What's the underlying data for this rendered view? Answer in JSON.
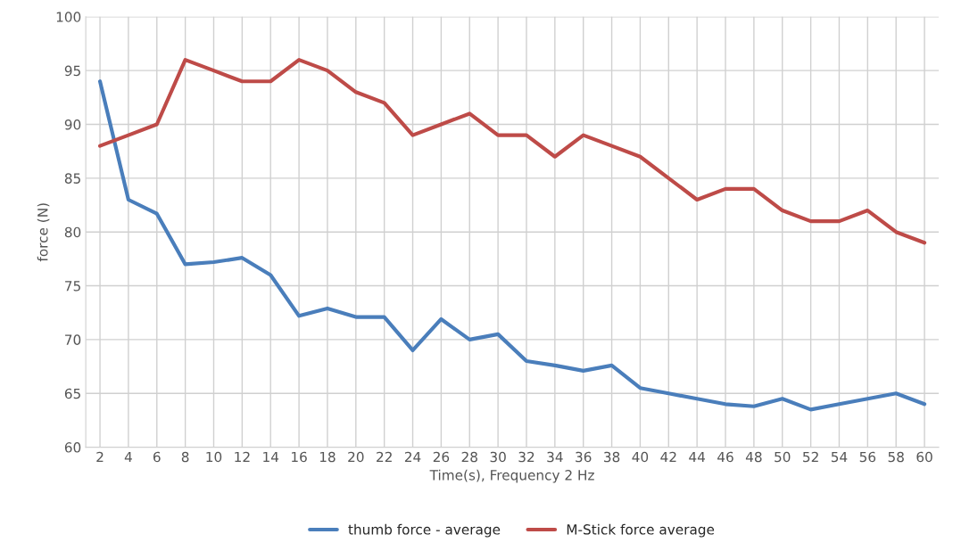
{
  "chart_data": {
    "type": "line",
    "xlabel": "Time(s), Frequency 2 Hz",
    "ylabel": "force (N)",
    "categories": [
      "2",
      "4",
      "6",
      "8",
      "10",
      "12",
      "14",
      "16",
      "18",
      "20",
      "22",
      "24",
      "26",
      "28",
      "30",
      "32",
      "34",
      "36",
      "38",
      "40",
      "42",
      "44",
      "46",
      "48",
      "50",
      "52",
      "54",
      "56",
      "58",
      "60"
    ],
    "series": [
      {
        "name": "thumb force - average",
        "color": "#4a7ebb",
        "values": [
          94,
          83,
          81.7,
          77,
          77.2,
          77.6,
          76,
          72.2,
          72.9,
          72.1,
          72.1,
          69,
          71.9,
          70,
          70.5,
          68,
          67.6,
          67.1,
          67.6,
          65.5,
          65,
          64.5,
          64,
          63.8,
          64.5,
          63.5,
          64,
          64.5,
          65,
          64
        ]
      },
      {
        "name": "M-Stick force average",
        "color": "#be4b48",
        "values": [
          88,
          89,
          90,
          96,
          95,
          94,
          94,
          96,
          95,
          93,
          92,
          89,
          90,
          91,
          89,
          89,
          87,
          89,
          88,
          87,
          85,
          83,
          84,
          84,
          82,
          81,
          81,
          82,
          80,
          79
        ]
      }
    ],
    "ylim": [
      60,
      100
    ],
    "yticks": [
      60,
      65,
      70,
      75,
      80,
      85,
      90,
      95,
      100
    ],
    "grid": true,
    "legend": "bottom",
    "marker": "none",
    "line_style": "solid"
  }
}
